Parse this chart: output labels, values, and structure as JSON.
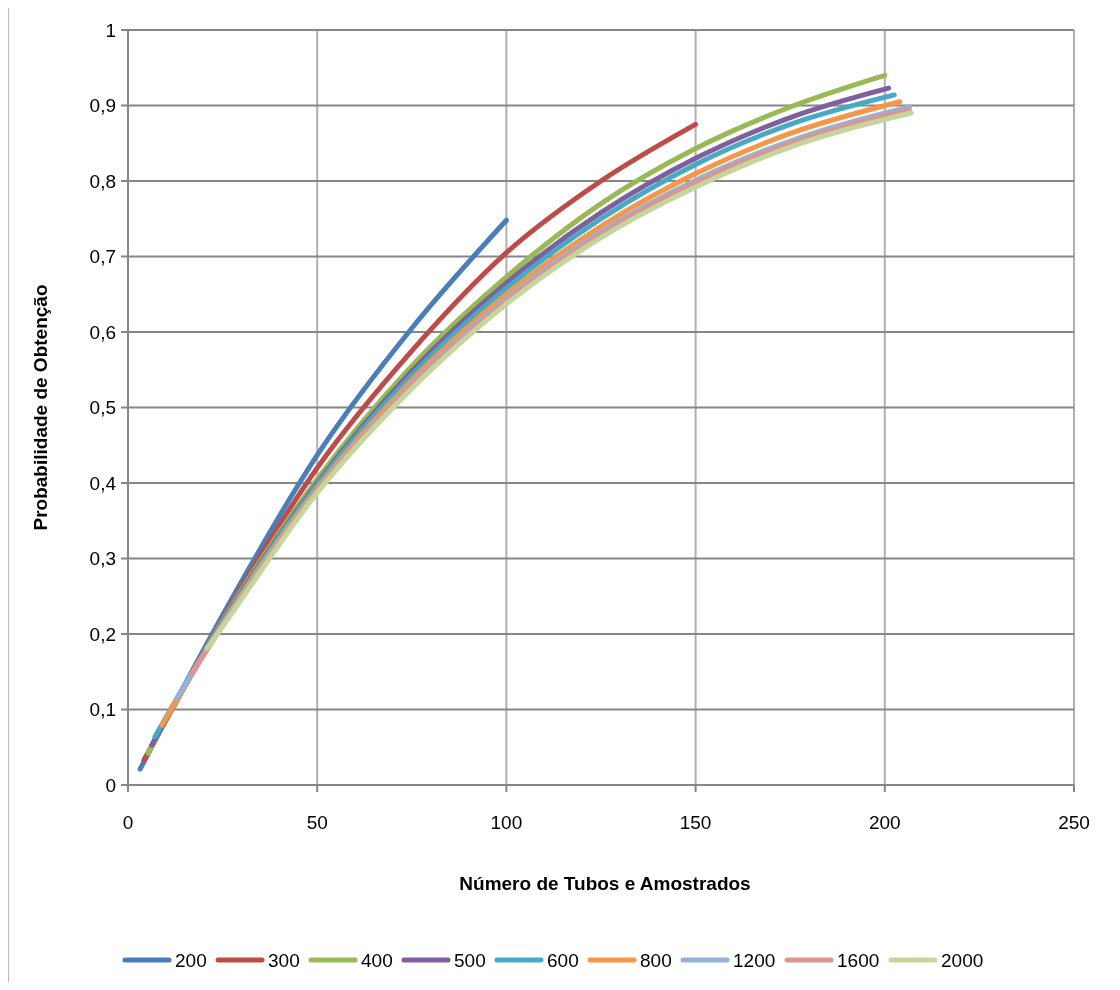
{
  "chart_data": {
    "type": "line",
    "xlabel": "Número de Tubos  e Amostrados",
    "ylabel": "Probabilidade  de Obtenção",
    "xlim": [
      0,
      250
    ],
    "xticks": [
      0,
      50,
      100,
      150,
      200,
      250
    ],
    "ylim": [
      0,
      1
    ],
    "yticks": [
      {
        "value": 0,
        "label": "0"
      },
      {
        "value": 0.1,
        "label": "0,1"
      },
      {
        "value": 0.2,
        "label": "0,2"
      },
      {
        "value": 0.3,
        "label": "0,3"
      },
      {
        "value": 0.4,
        "label": "0,4"
      },
      {
        "value": 0.5,
        "label": "0,5"
      },
      {
        "value": 0.6,
        "label": "0,6"
      },
      {
        "value": 0.7,
        "label": "0,7"
      },
      {
        "value": 0.8,
        "label": "0,8"
      },
      {
        "value": 0.9,
        "label": "0,9"
      },
      {
        "value": 1,
        "label": "1"
      }
    ],
    "grid": true,
    "legend": "bottom",
    "marker": "none",
    "line_style": "solid",
    "series": [
      {
        "name": "200",
        "color": "#4a7ebb",
        "x": [
          3.2,
          25,
          50,
          75,
          100
        ],
        "values": [
          0.021,
          0.225,
          0.437,
          0.605,
          0.748
        ]
      },
      {
        "name": "300",
        "color": "#be4b48",
        "x": [
          4.2,
          25,
          50,
          75,
          100,
          125,
          150
        ],
        "values": [
          0.033,
          0.22,
          0.42,
          0.575,
          0.705,
          0.8,
          0.875
        ]
      },
      {
        "name": "400",
        "color": "#98b954",
        "x": [
          5.3,
          25,
          50,
          75,
          100,
          125,
          150,
          175,
          200
        ],
        "values": [
          0.042,
          0.218,
          0.405,
          0.555,
          0.673,
          0.77,
          0.843,
          0.898,
          0.94
        ]
      },
      {
        "name": "500",
        "color": "#7d60a0",
        "x": [
          6.3,
          25,
          50,
          75,
          100,
          125,
          150,
          175,
          201
        ],
        "values": [
          0.053,
          0.216,
          0.4,
          0.548,
          0.665,
          0.758,
          0.83,
          0.884,
          0.923
        ]
      },
      {
        "name": "600",
        "color": "#46aac5",
        "x": [
          7.1,
          25,
          50,
          75,
          100,
          125,
          150,
          175,
          202.5
        ],
        "values": [
          0.064,
          0.215,
          0.398,
          0.543,
          0.658,
          0.75,
          0.822,
          0.875,
          0.914
        ]
      },
      {
        "name": "800",
        "color": "#f79646",
        "x": [
          9,
          25,
          50,
          75,
          100,
          125,
          150,
          175,
          204
        ],
        "values": [
          0.079,
          0.213,
          0.393,
          0.536,
          0.65,
          0.74,
          0.81,
          0.863,
          0.905
        ]
      },
      {
        "name": "1200",
        "color": "#95b3d7",
        "x": [
          12.9,
          25,
          50,
          75,
          100,
          125,
          150,
          175,
          206.5
        ],
        "values": [
          0.115,
          0.212,
          0.39,
          0.531,
          0.644,
          0.733,
          0.801,
          0.853,
          0.898
        ]
      },
      {
        "name": "1600",
        "color": "#d99694",
        "x": [
          16.9,
          25,
          50,
          75,
          100,
          125,
          150,
          175,
          206.5
        ],
        "values": [
          0.148,
          0.211,
          0.389,
          0.529,
          0.641,
          0.73,
          0.798,
          0.85,
          0.894
        ]
      },
      {
        "name": "2000",
        "color": "#c3d69b",
        "x": [
          20.9,
          25,
          50,
          75,
          100,
          125,
          150,
          175,
          207
        ],
        "values": [
          0.181,
          0.21,
          0.387,
          0.525,
          0.637,
          0.725,
          0.792,
          0.845,
          0.89
        ]
      }
    ]
  }
}
